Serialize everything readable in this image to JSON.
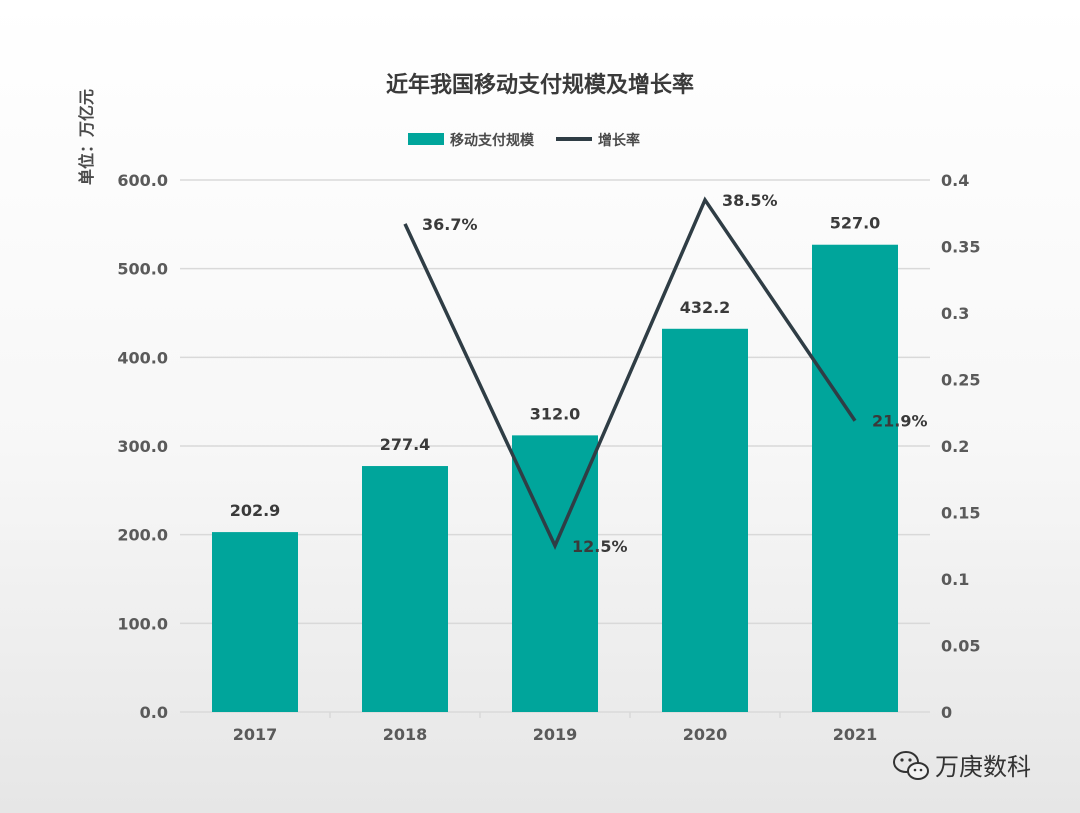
{
  "chart_data": {
    "type": "bar",
    "title": "近年我国移动支付规模及增长率",
    "unit_label": "单位：万亿元",
    "categories": [
      "2017",
      "2018",
      "2019",
      "2020",
      "2021"
    ],
    "series": [
      {
        "name": "移动支付规模",
        "type": "bar",
        "axis": "left",
        "values": [
          202.9,
          277.4,
          312.0,
          432.2,
          527.0
        ],
        "labels": [
          "202.9",
          "277.4",
          "312.0",
          "432.2",
          "527.0"
        ]
      },
      {
        "name": "增长率",
        "type": "line",
        "axis": "right",
        "values": [
          null,
          0.367,
          0.125,
          0.385,
          0.219
        ],
        "labels": [
          "",
          "36.7%",
          "12.5%",
          "38.5%",
          "21.9%"
        ]
      }
    ],
    "y_left": {
      "min": 0,
      "max": 600,
      "ticks": [
        "0.0",
        "100.0",
        "200.0",
        "300.0",
        "400.0",
        "500.0",
        "600.0"
      ]
    },
    "y_right": {
      "min": 0,
      "max": 0.4,
      "ticks": [
        "0",
        "0.05",
        "0.1",
        "0.15",
        "0.2",
        "0.25",
        "0.3",
        "0.35",
        "0.4"
      ]
    },
    "grid": true,
    "legend_position": "top",
    "colors": {
      "bar": "#00a59b",
      "line": "#2f3d45"
    }
  },
  "watermark": {
    "text": "万庚数科",
    "icon": "wechat-icon"
  }
}
